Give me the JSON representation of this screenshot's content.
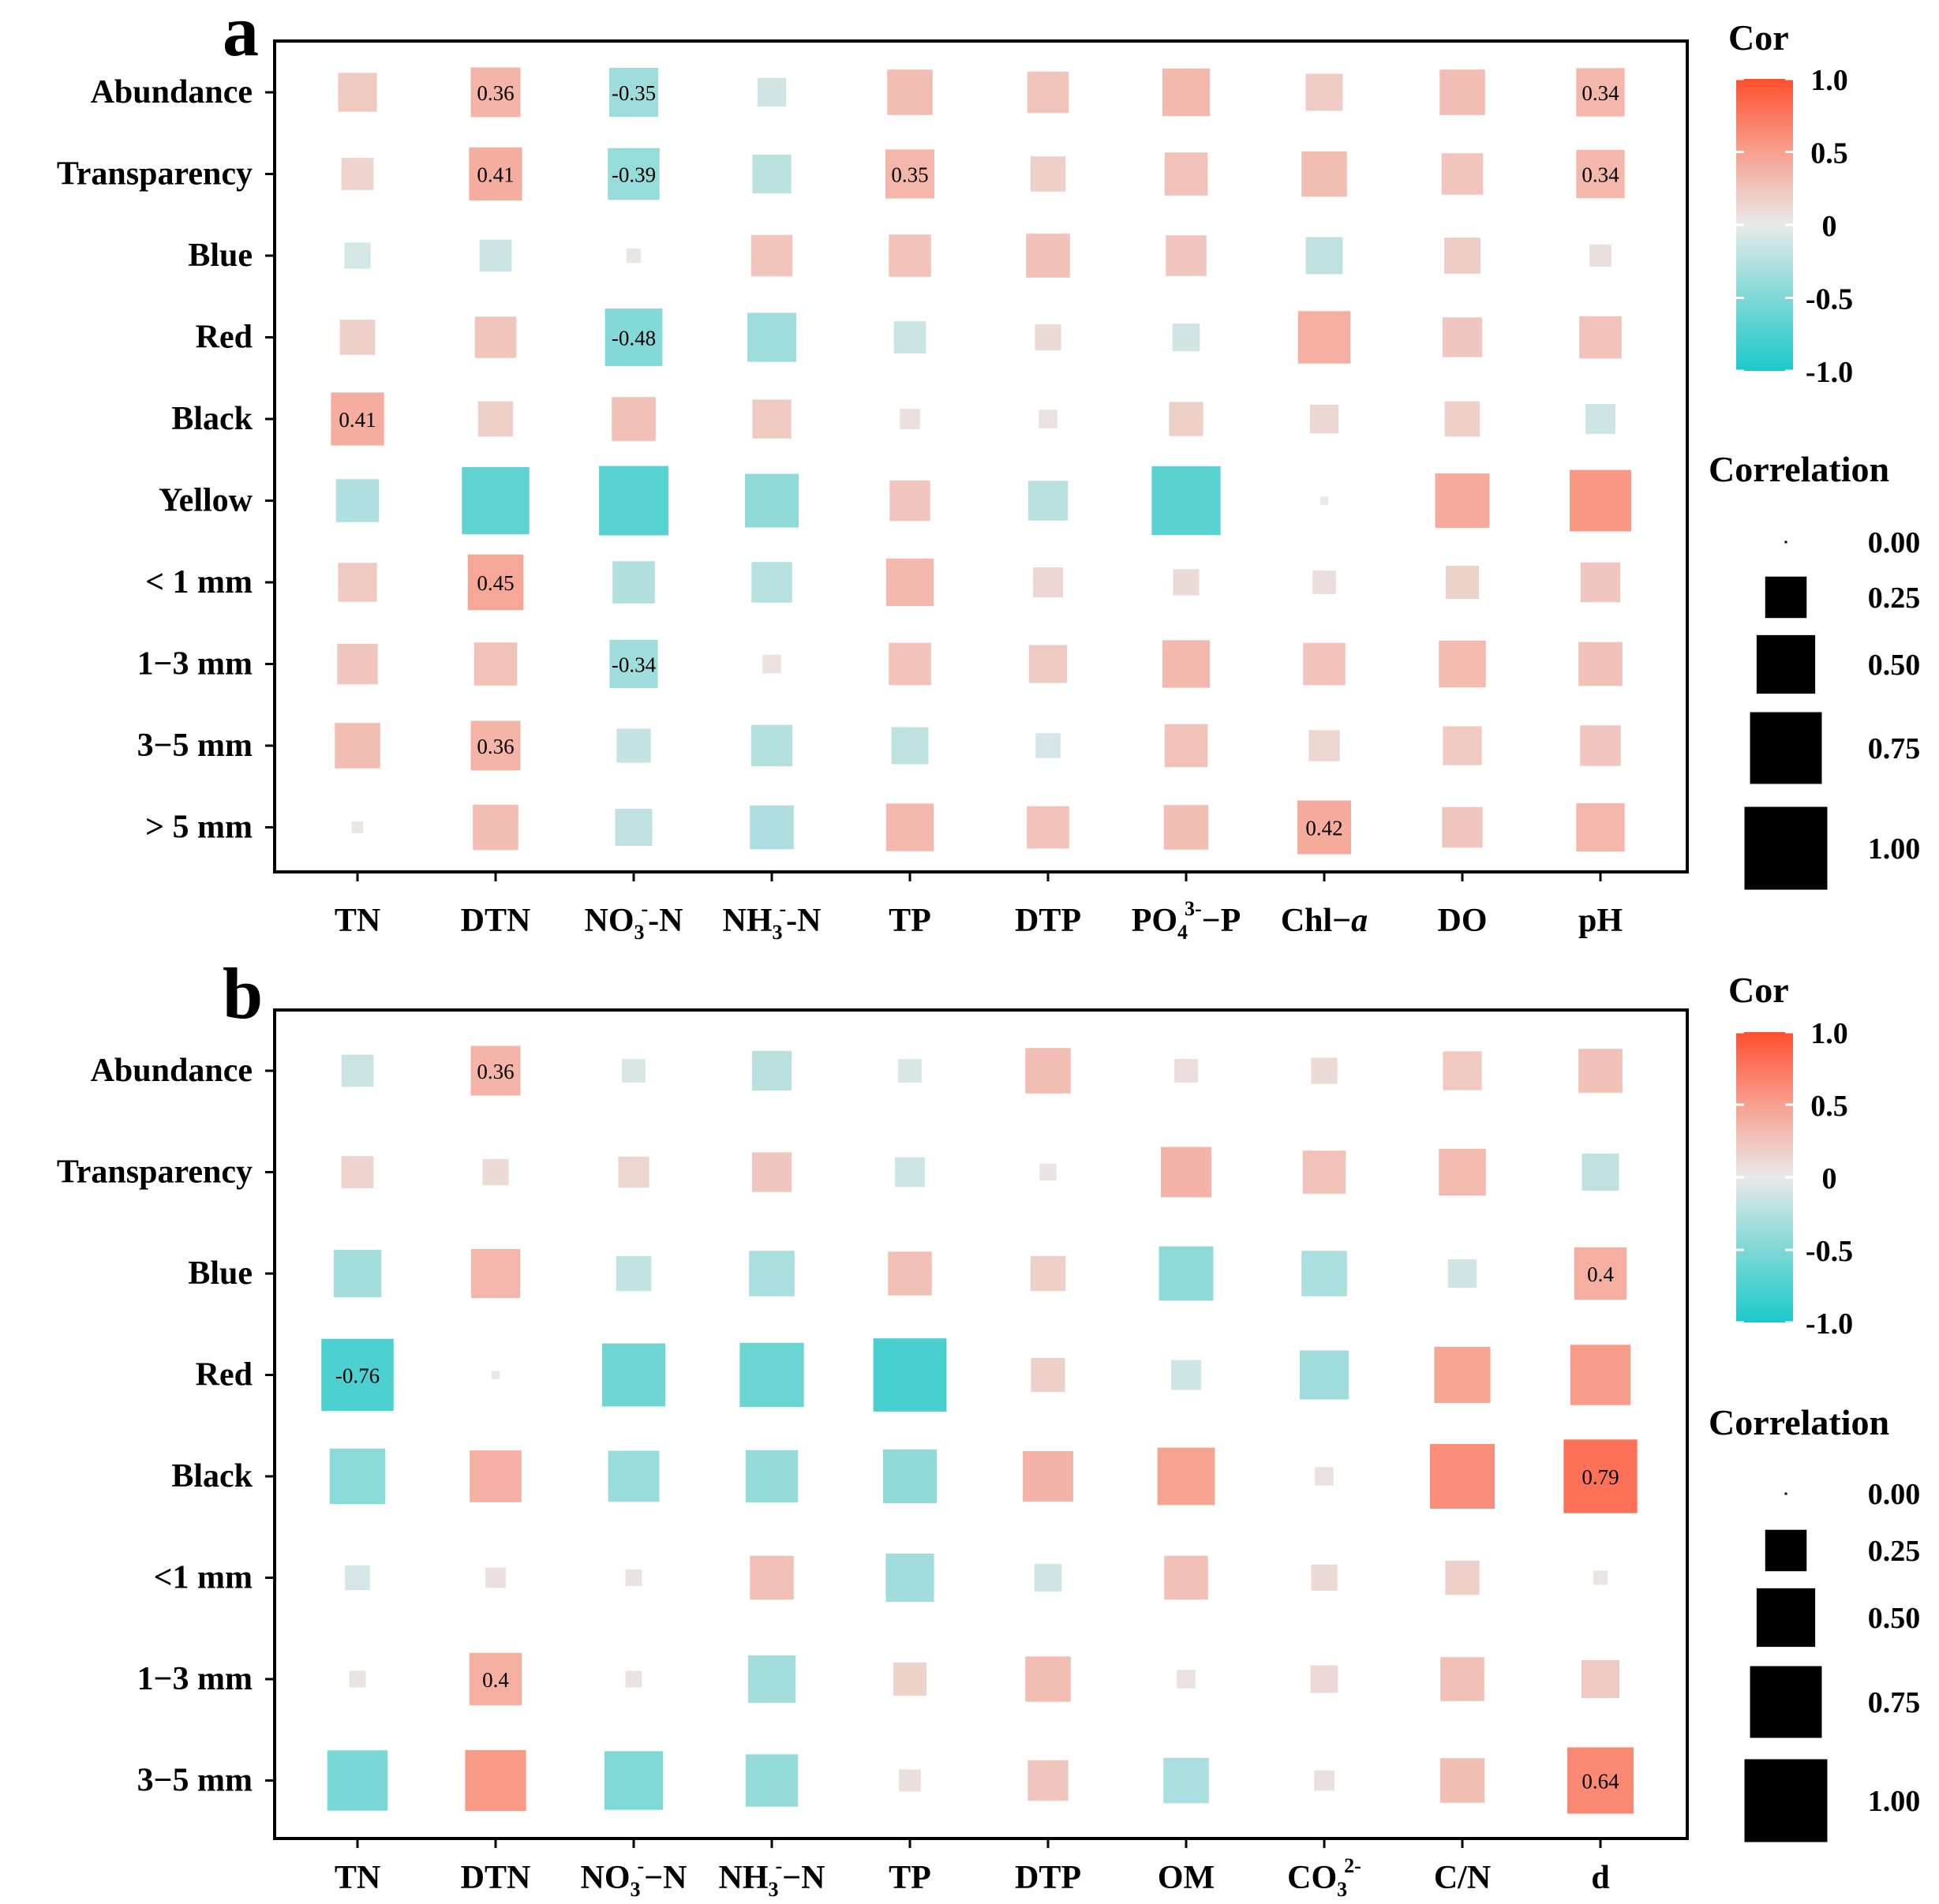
{
  "chart_data": [
    {
      "type": "heatmap",
      "panel_label": "a",
      "rows": [
        "Abundance",
        "Transparency",
        "Blue",
        "Red",
        "Black",
        "Yellow",
        "< 1 mm",
        "1−3 mm",
        "3−5 mm",
        "> 5 mm"
      ],
      "columns": [
        {
          "base": "TN",
          "sub": "",
          "sup": "",
          "tail": ""
        },
        {
          "base": "DTN",
          "sub": "",
          "sup": "",
          "tail": ""
        },
        {
          "base": "NO",
          "sub": "3",
          "sup": "-",
          "tail": "-N"
        },
        {
          "base": "NH",
          "sub": "3",
          "sup": "-",
          "tail": "-N"
        },
        {
          "base": "TP",
          "sub": "",
          "sup": "",
          "tail": ""
        },
        {
          "base": "DTP",
          "sub": "",
          "sup": "",
          "tail": ""
        },
        {
          "base": "PO",
          "sub": "4",
          "sup": "3-",
          "tail": "−P"
        },
        {
          "base": "Chl−",
          "sub": "",
          "sup": "",
          "tail": "",
          "italic_tail": "a"
        },
        {
          "base": "DO",
          "sub": "",
          "sup": "",
          "tail": ""
        },
        {
          "base": "pH",
          "sub": "",
          "sup": "",
          "tail": ""
        }
      ],
      "values": [
        [
          0.22,
          0.36,
          -0.35,
          -0.12,
          0.3,
          0.25,
          0.33,
          0.2,
          0.3,
          0.34
        ],
        [
          0.15,
          0.41,
          -0.39,
          -0.22,
          0.35,
          0.18,
          0.27,
          0.3,
          0.25,
          0.34
        ],
        [
          -0.1,
          -0.15,
          0.03,
          0.25,
          0.26,
          0.28,
          0.24,
          -0.2,
          0.19,
          0.07
        ],
        [
          0.18,
          0.25,
          -0.48,
          -0.35,
          -0.15,
          0.1,
          -0.11,
          0.4,
          0.23,
          0.26
        ],
        [
          0.41,
          0.18,
          0.28,
          0.22,
          0.06,
          0.05,
          0.17,
          0.12,
          0.18,
          -0.13
        ],
        [
          -0.27,
          -0.66,
          -0.7,
          -0.42,
          0.24,
          -0.23,
          -0.69,
          0.01,
          0.43,
          0.55
        ],
        [
          0.22,
          0.45,
          -0.26,
          -0.24,
          0.33,
          0.13,
          0.1,
          0.08,
          0.16,
          0.23
        ],
        [
          0.24,
          0.27,
          -0.34,
          0.05,
          0.26,
          0.21,
          0.33,
          0.26,
          0.32,
          0.28
        ],
        [
          0.3,
          0.36,
          -0.17,
          -0.25,
          -0.2,
          -0.09,
          0.27,
          0.14,
          0.22,
          0.24
        ],
        [
          0.02,
          0.3,
          -0.2,
          -0.28,
          0.33,
          0.26,
          0.29,
          0.42,
          0.24,
          0.34
        ]
      ],
      "labeled_cells": [
        {
          "row": 0,
          "col": 1,
          "text": "0.36"
        },
        {
          "row": 0,
          "col": 2,
          "text": "-0.35"
        },
        {
          "row": 0,
          "col": 9,
          "text": "0.34"
        },
        {
          "row": 1,
          "col": 1,
          "text": "0.41"
        },
        {
          "row": 1,
          "col": 2,
          "text": "-0.39"
        },
        {
          "row": 1,
          "col": 4,
          "text": "0.35"
        },
        {
          "row": 1,
          "col": 9,
          "text": "0.34"
        },
        {
          "row": 3,
          "col": 2,
          "text": "-0.48"
        },
        {
          "row": 4,
          "col": 0,
          "text": "0.41"
        },
        {
          "row": 6,
          "col": 1,
          "text": "0.45"
        },
        {
          "row": 7,
          "col": 2,
          "text": "-0.34"
        },
        {
          "row": 8,
          "col": 1,
          "text": "0.36"
        },
        {
          "row": 9,
          "col": 7,
          "text": "0.42"
        }
      ],
      "color_legend": {
        "title": "Cor",
        "ticks": [
          "1.0",
          "0.5",
          "0",
          "-0.5",
          "-1.0"
        ],
        "range": [
          -1,
          1
        ]
      },
      "size_legend": {
        "title": "Correlation",
        "labels": [
          "0.00",
          "0.25",
          "0.50",
          "0.75",
          "1.00"
        ],
        "values": [
          0,
          0.25,
          0.5,
          0.75,
          1.0
        ]
      }
    },
    {
      "type": "heatmap",
      "panel_label": "b",
      "rows": [
        "Abundance",
        "Transparency",
        "Blue",
        "Red",
        "Black",
        "<1 mm",
        "1−3 mm",
        "3−5 mm"
      ],
      "columns": [
        {
          "base": "TN",
          "sub": "",
          "sup": "",
          "tail": ""
        },
        {
          "base": "DTN",
          "sub": "",
          "sup": "",
          "tail": ""
        },
        {
          "base": "NO",
          "sub": "3",
          "sup": "-",
          "tail": "−N"
        },
        {
          "base": "NH",
          "sub": "3",
          "sup": "-",
          "tail": "−N"
        },
        {
          "base": "TP",
          "sub": "",
          "sup": "",
          "tail": ""
        },
        {
          "base": "DTP",
          "sub": "",
          "sup": "",
          "tail": ""
        },
        {
          "base": "OM",
          "sub": "",
          "sup": "",
          "tail": ""
        },
        {
          "base": "CO",
          "sub": "3",
          "sup": "2-",
          "tail": ""
        },
        {
          "base": "C/N",
          "sub": "",
          "sup": "",
          "tail": ""
        },
        {
          "base": "d",
          "sub": "",
          "sup": "",
          "tail": ""
        }
      ],
      "values": [
        [
          -0.15,
          0.36,
          -0.08,
          -0.23,
          -0.08,
          0.3,
          0.08,
          0.1,
          0.22,
          0.28
        ],
        [
          0.15,
          0.1,
          0.14,
          0.23,
          -0.13,
          0.04,
          0.37,
          0.27,
          0.32,
          -0.2
        ],
        [
          -0.33,
          0.35,
          -0.18,
          -0.3,
          0.28,
          0.18,
          -0.43,
          -0.3,
          -0.12,
          0.4
        ],
        [
          -0.76,
          0.01,
          -0.58,
          -0.6,
          -0.78,
          0.17,
          -0.13,
          -0.35,
          0.46,
          0.53
        ],
        [
          -0.45,
          0.39,
          -0.38,
          -0.4,
          -0.42,
          0.37,
          0.48,
          0.05,
          0.61,
          0.79
        ],
        [
          -0.09,
          0.06,
          0.04,
          0.28,
          -0.34,
          -0.11,
          0.28,
          0.1,
          0.17,
          0.03
        ],
        [
          0.04,
          0.4,
          0.04,
          -0.33,
          0.16,
          0.3,
          0.05,
          0.11,
          0.28,
          0.21
        ],
        [
          -0.53,
          0.54,
          -0.5,
          -0.4,
          0.07,
          0.24,
          -0.3,
          0.06,
          0.29,
          0.64
        ]
      ],
      "labeled_cells": [
        {
          "row": 0,
          "col": 1,
          "text": "0.36"
        },
        {
          "row": 2,
          "col": 9,
          "text": "0.4"
        },
        {
          "row": 3,
          "col": 0,
          "text": "-0.76"
        },
        {
          "row": 4,
          "col": 9,
          "text": "0.79"
        },
        {
          "row": 6,
          "col": 1,
          "text": "0.4"
        },
        {
          "row": 7,
          "col": 9,
          "text": "0.64"
        }
      ],
      "color_legend": {
        "title": "Cor",
        "ticks": [
          "1.0",
          "0.5",
          "0",
          "-0.5",
          "-1.0"
        ],
        "range": [
          -1,
          1
        ]
      },
      "size_legend": {
        "title": "Correlation",
        "labels": [
          "0.00",
          "0.25",
          "0.50",
          "0.75",
          "1.00"
        ],
        "values": [
          0,
          0.25,
          0.5,
          0.75,
          1.0
        ]
      }
    }
  ]
}
